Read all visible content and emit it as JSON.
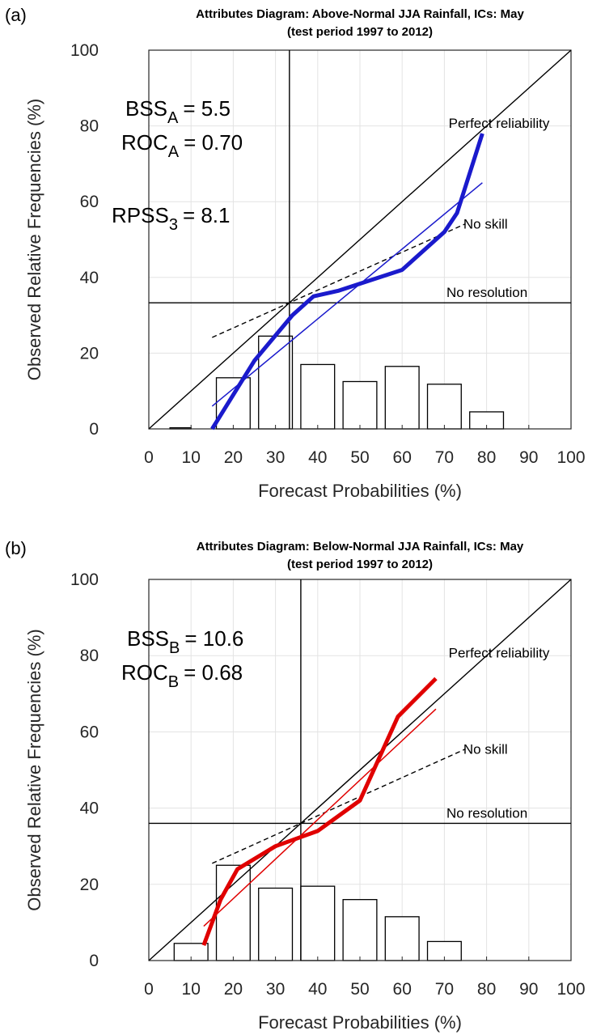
{
  "chart_data": [
    {
      "type": "line",
      "panel_label": "(a)",
      "title_line1": "Attributes Diagram: Above-Normal JJA Rainfall, ICs: May",
      "title_line2": "(test period 1997 to 2012)",
      "xlabel": "Forecast Probabilities (%)",
      "ylabel": "Observed Relative Frequencies (%)",
      "xlim": [
        0,
        100
      ],
      "ylim": [
        0,
        100
      ],
      "xticks": [
        "0",
        "10",
        "20",
        "30",
        "40",
        "50",
        "60",
        "70",
        "80",
        "90",
        "100"
      ],
      "yticks": [
        "0",
        "20",
        "40",
        "60",
        "80",
        "100"
      ],
      "grid": true,
      "climatology": 33.3,
      "stats": [
        {
          "name": "BSS",
          "sub": "A",
          "eq": "= 5.5"
        },
        {
          "name": "ROC",
          "sub": "A",
          "eq": "= 0.70"
        },
        {
          "name": "RPSS",
          "sub": "3",
          "eq": "= 8.1"
        }
      ],
      "labels": {
        "perfect": "Perfect reliability",
        "noskill": "No skill",
        "noresolution": "No resolution"
      },
      "histogram": [
        {
          "x0": 5,
          "x1": 10,
          "value": 0.3
        },
        {
          "x0": 16,
          "x1": 24,
          "value": 13.5
        },
        {
          "x0": 26,
          "x1": 34,
          "value": 24.5
        },
        {
          "x0": 36,
          "x1": 44,
          "value": 17
        },
        {
          "x0": 46,
          "x1": 54,
          "value": 12.5
        },
        {
          "x0": 56,
          "x1": 64,
          "value": 16.5
        },
        {
          "x0": 66,
          "x1": 74,
          "value": 11.8
        },
        {
          "x0": 76,
          "x1": 84,
          "value": 4.5
        }
      ],
      "reliability": {
        "color": "#1a1acc",
        "points": [
          [
            15,
            0
          ],
          [
            25,
            18
          ],
          [
            34,
            30
          ],
          [
            39,
            35
          ],
          [
            45,
            36.5
          ],
          [
            60,
            42
          ],
          [
            70,
            52
          ],
          [
            73,
            57
          ],
          [
            79,
            78
          ]
        ]
      },
      "fit": {
        "color": "#1a1acc",
        "points": [
          [
            15,
            6
          ],
          [
            79,
            65
          ]
        ]
      }
    },
    {
      "type": "line",
      "panel_label": "(b)",
      "title_line1": "Attributes Diagram: Below-Normal JJA Rainfall, ICs: May",
      "title_line2": "(test period 1997 to 2012)",
      "xlabel": "Forecast Probabilities (%)",
      "ylabel": "Observed Relative Frequencies (%)",
      "xlim": [
        0,
        100
      ],
      "ylim": [
        0,
        100
      ],
      "xticks": [
        "0",
        "10",
        "20",
        "30",
        "40",
        "50",
        "60",
        "70",
        "80",
        "90",
        "100"
      ],
      "yticks": [
        "0",
        "20",
        "40",
        "60",
        "80",
        "100"
      ],
      "grid": true,
      "climatology": 36,
      "stats": [
        {
          "name": "BSS",
          "sub": "B",
          "eq": "= 10.6"
        },
        {
          "name": "ROC",
          "sub": "B",
          "eq": "= 0.68"
        }
      ],
      "labels": {
        "perfect": "Perfect reliability",
        "noskill": "No skill",
        "noresolution": "No resolution"
      },
      "histogram": [
        {
          "x0": 6,
          "x1": 14,
          "value": 4.5
        },
        {
          "x0": 16,
          "x1": 24,
          "value": 25
        },
        {
          "x0": 26,
          "x1": 34,
          "value": 19
        },
        {
          "x0": 36,
          "x1": 44,
          "value": 19.5
        },
        {
          "x0": 46,
          "x1": 54,
          "value": 16
        },
        {
          "x0": 56,
          "x1": 64,
          "value": 11.5
        },
        {
          "x0": 66,
          "x1": 74,
          "value": 5
        }
      ],
      "reliability": {
        "color": "#e00000",
        "points": [
          [
            13,
            4
          ],
          [
            17,
            16
          ],
          [
            21,
            24
          ],
          [
            30,
            30
          ],
          [
            40,
            34
          ],
          [
            50,
            42
          ],
          [
            59,
            64
          ],
          [
            68,
            74
          ]
        ]
      },
      "fit": {
        "color": "#e00000",
        "points": [
          [
            13,
            9
          ],
          [
            68,
            66
          ]
        ]
      }
    }
  ]
}
